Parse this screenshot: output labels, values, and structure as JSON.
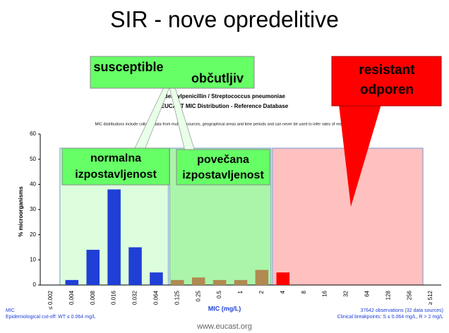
{
  "slide_title": "SIR - nove opredelitive",
  "callouts": {
    "susceptible": [
      "susceptible",
      "občutljiv"
    ],
    "normal": [
      "normalna",
      "izpostavljenost"
    ],
    "increased": [
      "povečana",
      "izpostavljenost"
    ],
    "resistant": [
      "resistant",
      "odporen"
    ]
  },
  "footer": "www.eucast.org",
  "chart_data": {
    "type": "bar",
    "title": "Benzylpenicillin / Streptococcus pneumoniae",
    "subtitle": "EUCAST MIC Distribution - Reference Database",
    "note": "MIC distributions include collated data from multiple sources, geographical areas and time periods and can never be used to infer rates of resistance",
    "x_label": "MIC (mg/L)",
    "y_label": "% microorganisms",
    "categories": [
      "≤ 0.002",
      "0.004",
      "0.008",
      "0.016",
      "0.032",
      "0.064",
      "0.125",
      "0.25",
      "0.5",
      "1",
      "2",
      "4",
      "8",
      "16",
      "32",
      "64",
      "128",
      "256",
      "≥ 512"
    ],
    "values": [
      0,
      2,
      14,
      38,
      15,
      5,
      2,
      3,
      2,
      2,
      6,
      5,
      0,
      0,
      0,
      0,
      0,
      0,
      0
    ],
    "colors": [
      "#1f3fd6",
      "#1f3fd6",
      "#1f3fd6",
      "#1f3fd6",
      "#1f3fd6",
      "#1f3fd6",
      "#b08a50",
      "#b08a50",
      "#b08a50",
      "#b08a50",
      "#b08a50",
      "#ff0000",
      "#ff0000",
      "#ff0000",
      "#ff0000",
      "#ff0000",
      "#ff0000",
      "#ff0000",
      "#ff0000"
    ],
    "ylim": [
      0,
      60
    ],
    "yticks": [
      0,
      10,
      20,
      30,
      40,
      50,
      60
    ],
    "grid": false,
    "footnotes_left": [
      "MIC",
      "Epidemiological cut-off: WT ≤ 0.064 mg/L"
    ],
    "footnotes_right": [
      "37642 observations (32 data sources)",
      "Clinical breakpoints: S ≤ 0.064 mg/L, R > 2 mg/L"
    ]
  }
}
